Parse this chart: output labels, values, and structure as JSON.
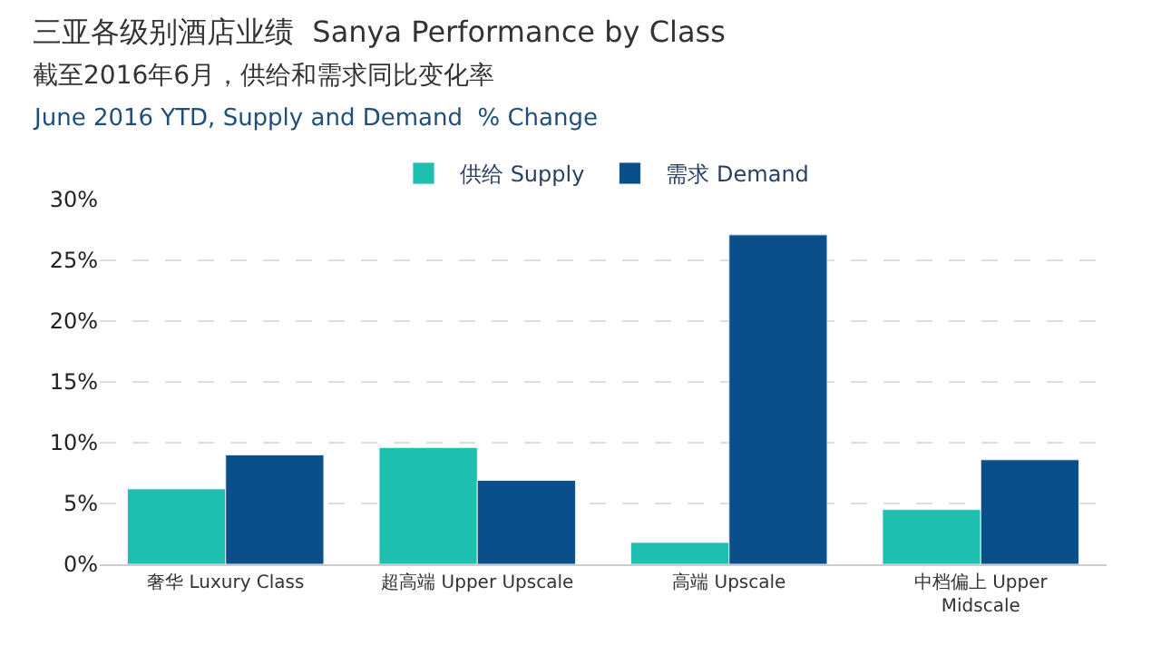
{
  "chart_data": {
    "type": "bar",
    "title": "三亚各级别酒店业绩  Sanya Performance by Class",
    "subtitle": "截至2016年6月，供给和需求同比变化率",
    "annotations": [
      "June 2016 YTD, Supply and Demand  % Change"
    ],
    "categories": [
      "奢华 Luxury Class",
      "超高端 Upper Upscale",
      "高端 Upscale",
      "中档偏上 Upper Midscale"
    ],
    "series": [
      {
        "name": "供给 Supply",
        "color": "#1fbfb0",
        "values": [
          6.2,
          9.6,
          1.8,
          4.5
        ]
      },
      {
        "name": "需求 Demand",
        "color": "#0b4f8a",
        "values": [
          9.0,
          6.9,
          27.1,
          8.6
        ]
      }
    ],
    "ylim": [
      0,
      30
    ],
    "yticks": [
      {
        "value": 0,
        "label": "0%"
      },
      {
        "value": 5,
        "label": "5%"
      },
      {
        "value": 10,
        "label": "10%"
      },
      {
        "value": 15,
        "label": "15%"
      },
      {
        "value": 20,
        "label": "20%"
      },
      {
        "value": 25,
        "label": "25%"
      },
      {
        "value": 30,
        "label": "30%"
      }
    ],
    "grid": "y",
    "legend": "top"
  }
}
